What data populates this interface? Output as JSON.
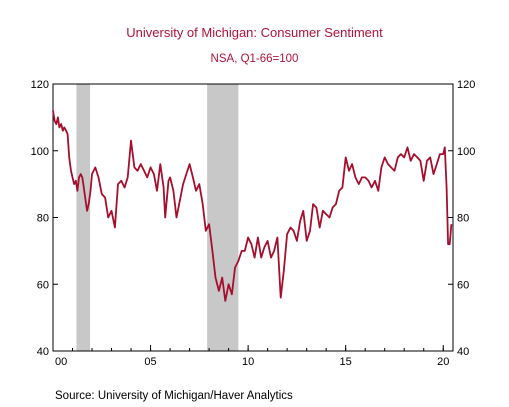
{
  "chart_data": {
    "type": "line",
    "title": "University of Michigan: Consumer Sentiment",
    "subtitle": "NSA, Q1-66=100",
    "source": "Source:  University of Michigan/Haver Analytics",
    "x_range": [
      2000.0,
      2020.5
    ],
    "ylim": [
      40,
      120
    ],
    "yticks": [
      40,
      60,
      80,
      100,
      120
    ],
    "xtick_labels": [
      {
        "year": 2000,
        "label": "00"
      },
      {
        "year": 2005,
        "label": "05"
      },
      {
        "year": 2010,
        "label": "10"
      },
      {
        "year": 2015,
        "label": "15"
      },
      {
        "year": 2020,
        "label": "20"
      }
    ],
    "recessions": [
      [
        2001.2,
        2001.9
      ],
      [
        2007.9,
        2009.5
      ]
    ],
    "line_color": "#a50f2d",
    "recession_color": "#c8c8c8",
    "series": [
      {
        "x": [
          2000.0,
          2000.08,
          2000.17,
          2000.25,
          2000.33,
          2000.42,
          2000.5,
          2000.58,
          2000.67,
          2000.75,
          2000.83,
          2000.92,
          2001.0,
          2001.08,
          2001.17,
          2001.25,
          2001.33,
          2001.42,
          2001.5,
          2001.58,
          2001.67,
          2001.75,
          2001.83,
          2001.92,
          2002.0,
          2002.17,
          2002.33,
          2002.5,
          2002.67,
          2002.83,
          2003.0,
          2003.17,
          2003.33,
          2003.5,
          2003.67,
          2003.83,
          2004.0,
          2004.17,
          2004.33,
          2004.5,
          2004.67,
          2004.83,
          2005.0,
          2005.17,
          2005.33,
          2005.5,
          2005.67,
          2005.75,
          2005.92,
          2006.0,
          2006.17,
          2006.33,
          2006.5,
          2006.67,
          2006.83,
          2007.0,
          2007.17,
          2007.33,
          2007.5,
          2007.67,
          2007.83,
          2008.0,
          2008.17,
          2008.33,
          2008.5,
          2008.67,
          2008.83,
          2009.0,
          2009.17,
          2009.33,
          2009.5,
          2009.67,
          2009.83,
          2010.0,
          2010.17,
          2010.33,
          2010.5,
          2010.67,
          2010.83,
          2011.0,
          2011.17,
          2011.33,
          2011.5,
          2011.67,
          2011.83,
          2012.0,
          2012.17,
          2012.33,
          2012.5,
          2012.67,
          2012.83,
          2013.0,
          2013.17,
          2013.33,
          2013.5,
          2013.67,
          2013.83,
          2014.0,
          2014.17,
          2014.33,
          2014.5,
          2014.67,
          2014.83,
          2015.0,
          2015.17,
          2015.33,
          2015.5,
          2015.67,
          2015.83,
          2016.0,
          2016.17,
          2016.33,
          2016.5,
          2016.67,
          2016.83,
          2017.0,
          2017.17,
          2017.33,
          2017.5,
          2017.67,
          2017.83,
          2018.0,
          2018.17,
          2018.33,
          2018.5,
          2018.67,
          2018.83,
          2019.0,
          2019.17,
          2019.33,
          2019.5,
          2019.67,
          2019.83,
          2020.0,
          2020.08,
          2020.17,
          2020.25,
          2020.33,
          2020.42
        ],
        "values": [
          112,
          109,
          108,
          110,
          107,
          108,
          106,
          107,
          106,
          105,
          98,
          94,
          92,
          90,
          91,
          88,
          92,
          93,
          92,
          89,
          85,
          82,
          84,
          88,
          93,
          95,
          92,
          87,
          86,
          80,
          82,
          77,
          90,
          91,
          89,
          92,
          103,
          95,
          94,
          96,
          94,
          92,
          95,
          93,
          88,
          96,
          89,
          80,
          91,
          92,
          88,
          80,
          85,
          90,
          93,
          96,
          92,
          88,
          90,
          84,
          76,
          78,
          70,
          62,
          58,
          62,
          55,
          60,
          57,
          65,
          67,
          70,
          70,
          74,
          72,
          68,
          74,
          68,
          71,
          73,
          68,
          70,
          74,
          56,
          64,
          75,
          77,
          76,
          73,
          79,
          82,
          73,
          76,
          84,
          83,
          77,
          82,
          81,
          80,
          83,
          84,
          88,
          89,
          98,
          94,
          96,
          92,
          90,
          92,
          92,
          91,
          89,
          91,
          88,
          95,
          98,
          96,
          95,
          94,
          98,
          99,
          98,
          101,
          97,
          99,
          98,
          97,
          91,
          97,
          98,
          93,
          96,
          99,
          99,
          101,
          89,
          72,
          72,
          78
        ]
      }
    ]
  }
}
